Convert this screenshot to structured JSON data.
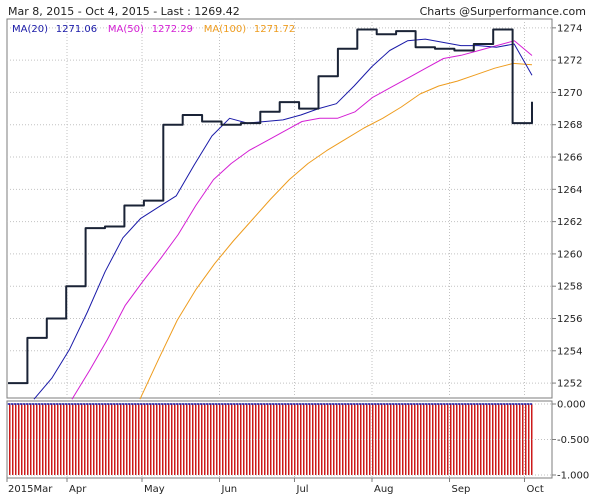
{
  "header": {
    "left": "Mar 8, 2015 - Oct 4, 2015 - Last : 1269.42",
    "right": "Charts @Surperformance.com"
  },
  "chart_data": [
    {
      "type": "line",
      "title": "",
      "legend_placement": "top-left",
      "x_dates": [
        "2015-03-08",
        "2015-03-15",
        "2015-03-22",
        "2015-03-29",
        "2015-04-05",
        "2015-04-12",
        "2015-04-19",
        "2015-04-26",
        "2015-05-03",
        "2015-05-10",
        "2015-05-17",
        "2015-05-24",
        "2015-05-31",
        "2015-06-07",
        "2015-06-14",
        "2015-06-21",
        "2015-06-28",
        "2015-07-05",
        "2015-07-12",
        "2015-07-19",
        "2015-07-26",
        "2015-08-02",
        "2015-08-09",
        "2015-08-16",
        "2015-08-23",
        "2015-08-30",
        "2015-09-06",
        "2015-09-13",
        "2015-09-20",
        "2015-09-27",
        "2015-10-04"
      ],
      "x_tick_labels": [
        "2015Mar",
        "Apr",
        "May",
        "Jun",
        "Jul",
        "Aug",
        "Sep",
        "Oct"
      ],
      "x_tick_dates": [
        "2015-03-08",
        "2015-04-01",
        "2015-05-01",
        "2015-06-01",
        "2015-07-01",
        "2015-08-01",
        "2015-09-01",
        "2015-10-01"
      ],
      "y_ticks": [
        1252,
        1254,
        1256,
        1258,
        1260,
        1262,
        1264,
        1266,
        1268,
        1270,
        1272,
        1274
      ],
      "ylim": [
        1251.2,
        1274.3
      ],
      "grid": true,
      "colors": {
        "price": "#1a2336",
        "ma20": "#1a1aa8",
        "ma50": "#d41ed4",
        "ma100": "#ee9c1e",
        "grid": "#c2c2c2"
      },
      "series": [
        {
          "name": "",
          "key": "price",
          "values": [
            1252.0,
            1254.8,
            1256.0,
            1258.0,
            1261.6,
            1261.7,
            1263.0,
            1263.3,
            1268.0,
            1268.6,
            1268.2,
            1268.0,
            1268.1,
            1268.8,
            1269.4,
            1269.0,
            1271.0,
            1272.7,
            1273.9,
            1273.6,
            1273.8,
            1272.8,
            1272.7,
            1272.6,
            1273.0,
            1273.9,
            1268.1,
            1269.42
          ]
        },
        {
          "name": "MA(20)",
          "key": "ma20",
          "last": "1271.06",
          "values": [
            1251.0,
            1252.3,
            1254.1,
            1256.4,
            1258.9,
            1261.0,
            1262.2,
            1262.9,
            1263.6,
            1265.5,
            1267.3,
            1268.4,
            1268.1,
            1268.2,
            1268.3,
            1268.6,
            1269.0,
            1269.3,
            1270.4,
            1271.6,
            1272.6,
            1273.2,
            1273.3,
            1273.1,
            1272.9,
            1272.9,
            1272.8,
            1273.0,
            1271.06
          ]
        },
        {
          "name": "MA(50)",
          "key": "ma50",
          "last": "1272.29",
          "values": [
            1251.0,
            1252.8,
            1254.7,
            1256.8,
            1258.3,
            1259.7,
            1261.2,
            1263.0,
            1264.6,
            1265.6,
            1266.4,
            1267.0,
            1267.6,
            1268.2,
            1268.4,
            1268.4,
            1268.8,
            1269.7,
            1270.3,
            1270.9,
            1271.5,
            1272.1,
            1272.3,
            1272.6,
            1272.9,
            1273.2,
            1272.29
          ]
        },
        {
          "name": "MA(100)",
          "key": "ma100",
          "last": "1271.72",
          "values": [
            1251.0,
            1253.5,
            1255.9,
            1257.8,
            1259.4,
            1260.8,
            1262.1,
            1263.4,
            1264.6,
            1265.6,
            1266.4,
            1267.1,
            1267.8,
            1268.4,
            1269.1,
            1269.9,
            1270.4,
            1270.7,
            1271.1,
            1271.5,
            1271.8,
            1271.72
          ]
        }
      ]
    },
    {
      "type": "bar",
      "title": "",
      "y_tick_labels": [
        "0.000",
        "-0.500",
        "-1.000"
      ],
      "y_ticks": [
        0,
        -0.5,
        -1.0
      ],
      "ylim": [
        -1.0,
        0.0
      ],
      "grid": true,
      "colors": {
        "bar": "#cc1a1a",
        "zero_line": "#1a1aa8"
      },
      "value": -1.0
    }
  ]
}
